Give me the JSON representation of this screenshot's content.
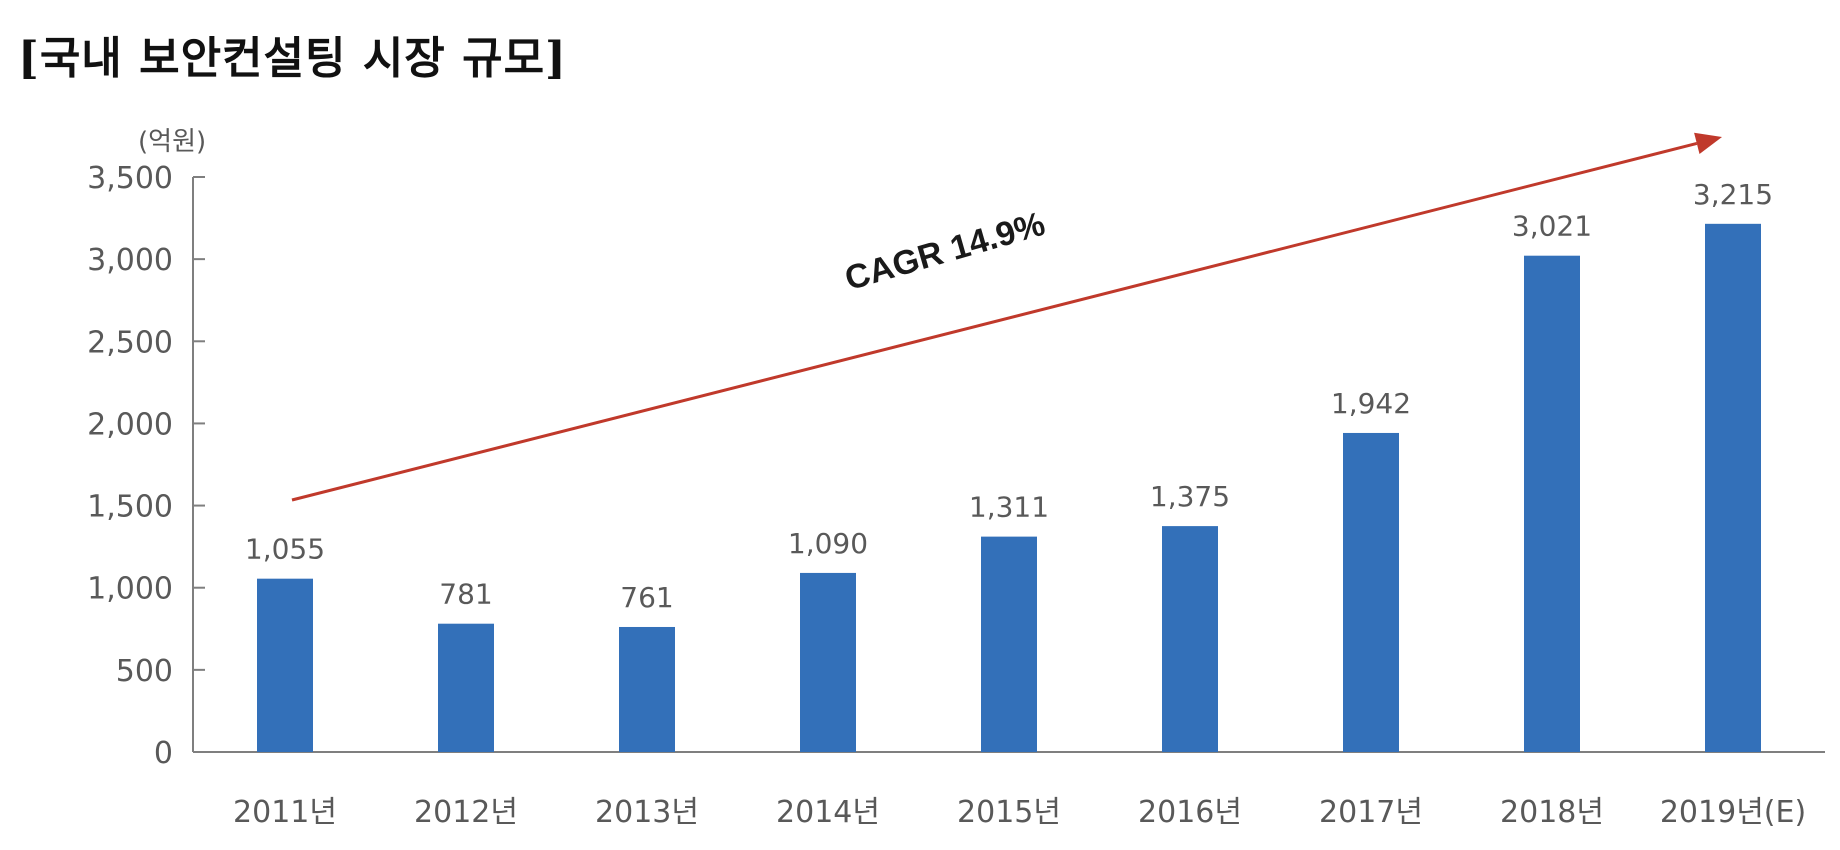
{
  "title": "[국내 보안컨설팅 시장 규모]",
  "chart_data": {
    "type": "bar",
    "title": "[국내 보안컨설팅 시장 규모]",
    "unit_label": "(억원)",
    "categories": [
      "2011년",
      "2012년",
      "2013년",
      "2014년",
      "2015년",
      "2016년",
      "2017년",
      "2018년",
      "2019년(E)"
    ],
    "values": [
      1055,
      781,
      761,
      1090,
      1311,
      1375,
      1942,
      3021,
      3215
    ],
    "data_labels": [
      "1,055",
      "781",
      "761",
      "1,090",
      "1,311",
      "1,375",
      "1,942",
      "3,021",
      "3,215"
    ],
    "ylim": [
      0,
      3500
    ],
    "yticks": [
      0,
      500,
      1000,
      1500,
      2000,
      2500,
      3000,
      3500
    ],
    "ytick_labels": [
      "0",
      "500",
      "1,000",
      "1,500",
      "2,000",
      "2,500",
      "3,000",
      "3,500"
    ],
    "annotation": "CAGR 14.9%",
    "bar_color": "#3370b9",
    "arrow_color": "#c0392b",
    "grid": false,
    "legend": "none"
  }
}
